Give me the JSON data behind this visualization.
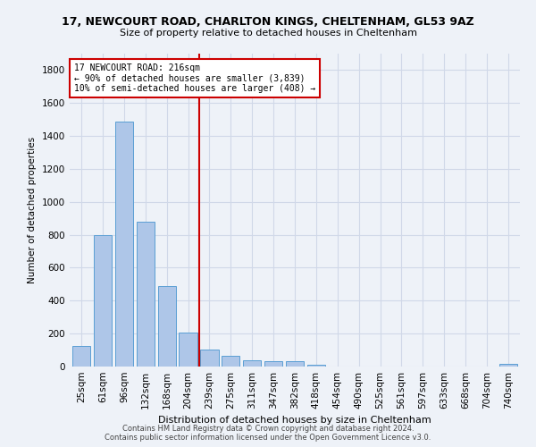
{
  "title": "17, NEWCOURT ROAD, CHARLTON KINGS, CHELTENHAM, GL53 9AZ",
  "subtitle": "Size of property relative to detached houses in Cheltenham",
  "xlabel": "Distribution of detached houses by size in Cheltenham",
  "ylabel": "Number of detached properties",
  "footer_line1": "Contains HM Land Registry data © Crown copyright and database right 2024.",
  "footer_line2": "Contains public sector information licensed under the Open Government Licence v3.0.",
  "bar_labels": [
    "25sqm",
    "61sqm",
    "96sqm",
    "132sqm",
    "168sqm",
    "204sqm",
    "239sqm",
    "275sqm",
    "311sqm",
    "347sqm",
    "382sqm",
    "418sqm",
    "454sqm",
    "490sqm",
    "525sqm",
    "561sqm",
    "597sqm",
    "633sqm",
    "668sqm",
    "704sqm",
    "740sqm"
  ],
  "bar_values": [
    125,
    800,
    1490,
    880,
    490,
    205,
    105,
    65,
    40,
    32,
    30,
    10,
    0,
    0,
    0,
    0,
    0,
    0,
    0,
    0,
    18
  ],
  "bar_color": "#aec6e8",
  "bar_edge_color": "#5a9fd4",
  "grid_color": "#d0d8e8",
  "background_color": "#eef2f8",
  "annotation_text_line1": "17 NEWCOURT ROAD: 216sqm",
  "annotation_text_line2": "← 90% of detached houses are smaller (3,839)",
  "annotation_text_line3": "10% of semi-detached houses are larger (408) →",
  "annotation_box_color": "#ffffff",
  "annotation_box_edge": "#cc0000",
  "vline_x": 5.5,
  "vline_color": "#cc0000",
  "ylim": [
    0,
    1900
  ],
  "yticks": [
    0,
    200,
    400,
    600,
    800,
    1000,
    1200,
    1400,
    1600,
    1800
  ]
}
